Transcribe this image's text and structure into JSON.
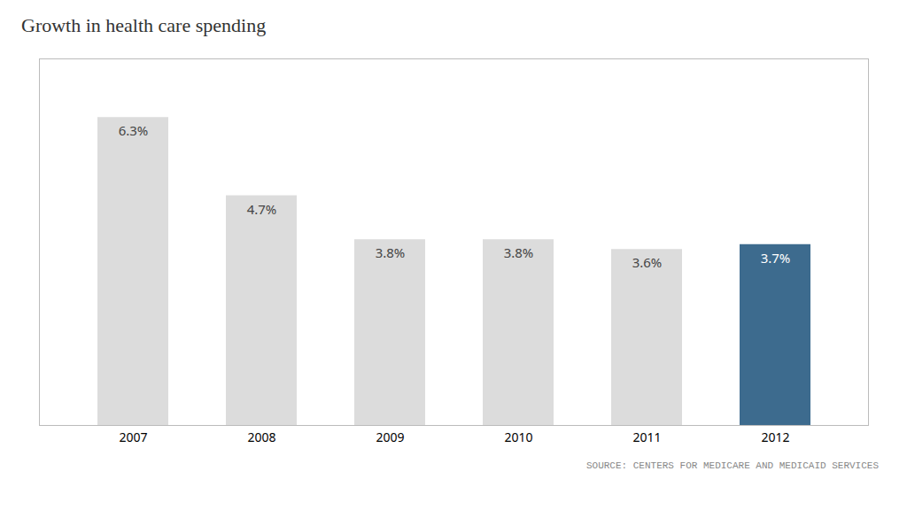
{
  "chart_data": {
    "type": "bar",
    "title": "Growth in health care spending",
    "categories": [
      "2007",
      "2008",
      "2009",
      "2010",
      "2011",
      "2012"
    ],
    "values": [
      6.3,
      4.7,
      3.8,
      3.8,
      3.6,
      3.7
    ],
    "value_labels": [
      "6.3%",
      "4.7%",
      "3.8%",
      "3.8%",
      "3.6%",
      "3.7%"
    ],
    "colors": [
      "#dcdcdc",
      "#dcdcdc",
      "#dcdcdc",
      "#dcdcdc",
      "#dcdcdc",
      "#3d6b8e"
    ],
    "ylim": [
      0,
      7.5
    ],
    "data_labels": true,
    "tick_labels": "x",
    "grid": false,
    "annotation": "SOURCE: CENTERS FOR MEDICARE AND MEDICAID SERVICES"
  }
}
